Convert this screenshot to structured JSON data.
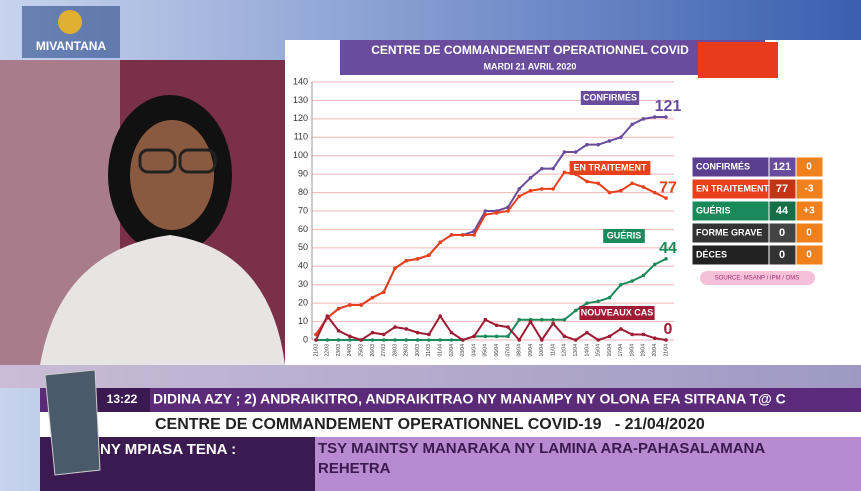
{
  "logo": "MIVANTANA",
  "chart_data": {
    "type": "line",
    "title": "CENTRE DE COMMANDEMENT OPERATIONNEL COVID",
    "subtitle": "MARDI 21 AVRIL 2020",
    "categories": [
      "21/03",
      "22/03",
      "23/03",
      "24/03",
      "25/03",
      "26/03",
      "27/03",
      "28/03",
      "29/03",
      "30/03",
      "31/03",
      "01/04",
      "02/04",
      "03/04",
      "04/04",
      "05/04",
      "06/04",
      "07/04",
      "08/04",
      "09/04",
      "10/04",
      "11/04",
      "12/04",
      "13/04",
      "14/04",
      "15/04",
      "16/04",
      "17/04",
      "18/04",
      "19/04",
      "20/04",
      "21/04"
    ],
    "series": [
      {
        "name": "CONFIRMÉS",
        "color": "#6a4c9c",
        "values": [
          3,
          12,
          17,
          19,
          19,
          23,
          26,
          39,
          43,
          44,
          46,
          53,
          57,
          57,
          59,
          70,
          70,
          72,
          82,
          88,
          93,
          93,
          102,
          102,
          106,
          106,
          108,
          110,
          117,
          120,
          121,
          121
        ]
      },
      {
        "name": "EN TRAITEMENT",
        "color": "#e8401c",
        "values": [
          3,
          12,
          17,
          19,
          19,
          23,
          26,
          39,
          43,
          44,
          46,
          53,
          57,
          57,
          57,
          68,
          69,
          70,
          78,
          81,
          82,
          82,
          91,
          90,
          86,
          85,
          80,
          81,
          85,
          83,
          80,
          77
        ]
      },
      {
        "name": "GUÉRIS",
        "color": "#1a8a5a",
        "values": [
          0,
          0,
          0,
          0,
          0,
          0,
          0,
          0,
          0,
          0,
          0,
          0,
          0,
          0,
          2,
          2,
          2,
          2,
          11,
          11,
          11,
          11,
          11,
          16,
          20,
          21,
          23,
          30,
          32,
          35,
          41,
          44
        ]
      },
      {
        "name": "NOUVEAUX CAS",
        "color": "#a01c35",
        "values": [
          0,
          13,
          5,
          2,
          0,
          4,
          3,
          7,
          6,
          4,
          3,
          13,
          4,
          0,
          2,
          11,
          8,
          7,
          0,
          10,
          0,
          9,
          2,
          0,
          4,
          0,
          2,
          6,
          3,
          3,
          1,
          0
        ]
      }
    ],
    "ylim": [
      0,
      140
    ],
    "yticks": [
      0,
      10,
      20,
      30,
      40,
      50,
      60,
      70,
      80,
      90,
      100,
      110,
      120,
      130,
      140
    ],
    "grid": true
  },
  "summary_table": {
    "rows": [
      [
        "CONFIRMÉS",
        121,
        0
      ],
      [
        "EN TRAITEMENT",
        77,
        -3
      ],
      [
        "GUÉRIS",
        44,
        "+3"
      ],
      [
        "FORME GRAVE",
        0,
        0
      ],
      [
        "DÉCES",
        0,
        0
      ]
    ],
    "source": "SOURCE: MSANP / IPM / OMS"
  },
  "ticker": {
    "time": "13:22",
    "text": "DIDINA AZY ; 2) ANDRAIKITRO, ANDRAIKITRAO NY MANAMPY NY OLONA EFA SITRANA T@ C"
  },
  "lower_third": {
    "title": "CENTRE DE COMMANDEMENT OPERATIONNEL COVID-19   - 21/04/2020",
    "label": "NY MPIASA TENA :",
    "message": "TSY MAINTSY MANARAKA NY LAMINA ARA-PAHASALAMANA REHETRA"
  }
}
